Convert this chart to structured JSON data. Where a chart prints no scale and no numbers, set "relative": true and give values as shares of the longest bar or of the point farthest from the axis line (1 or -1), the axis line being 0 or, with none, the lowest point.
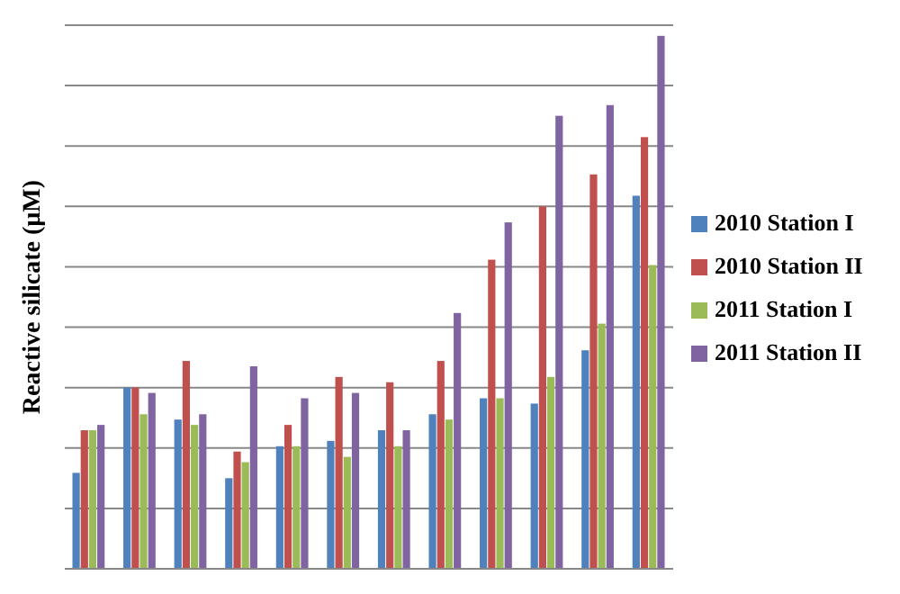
{
  "chart_data": {
    "type": "bar",
    "ylabel": "Reactive silicate (µM)",
    "relative": true,
    "grid": "y",
    "legend": "right",
    "categories": [
      null,
      null,
      null,
      null,
      null,
      null,
      null,
      null,
      null,
      null,
      null,
      null
    ],
    "series": [
      {
        "name": "2010 Station I",
        "color": "#4f81bd",
        "values": [
          0.18,
          0.34,
          0.28,
          0.17,
          0.23,
          0.24,
          0.26,
          0.29,
          0.32,
          0.31,
          0.41,
          0.7
        ]
      },
      {
        "name": "2010 Station II",
        "color": "#c0504d",
        "values": [
          0.26,
          0.34,
          0.39,
          0.22,
          0.27,
          0.36,
          0.35,
          0.39,
          0.58,
          0.68,
          0.74,
          0.81
        ]
      },
      {
        "name": "2011 Station I",
        "color": "#9bbb59",
        "values": [
          0.26,
          0.29,
          0.27,
          0.2,
          0.23,
          0.21,
          0.23,
          0.28,
          0.32,
          0.36,
          0.46,
          0.57
        ]
      },
      {
        "name": "2011 Station II",
        "color": "#8064a2",
        "values": [
          0.27,
          0.33,
          0.29,
          0.38,
          0.32,
          0.33,
          0.26,
          0.48,
          0.65,
          0.85,
          0.87,
          1
        ]
      }
    ]
  }
}
